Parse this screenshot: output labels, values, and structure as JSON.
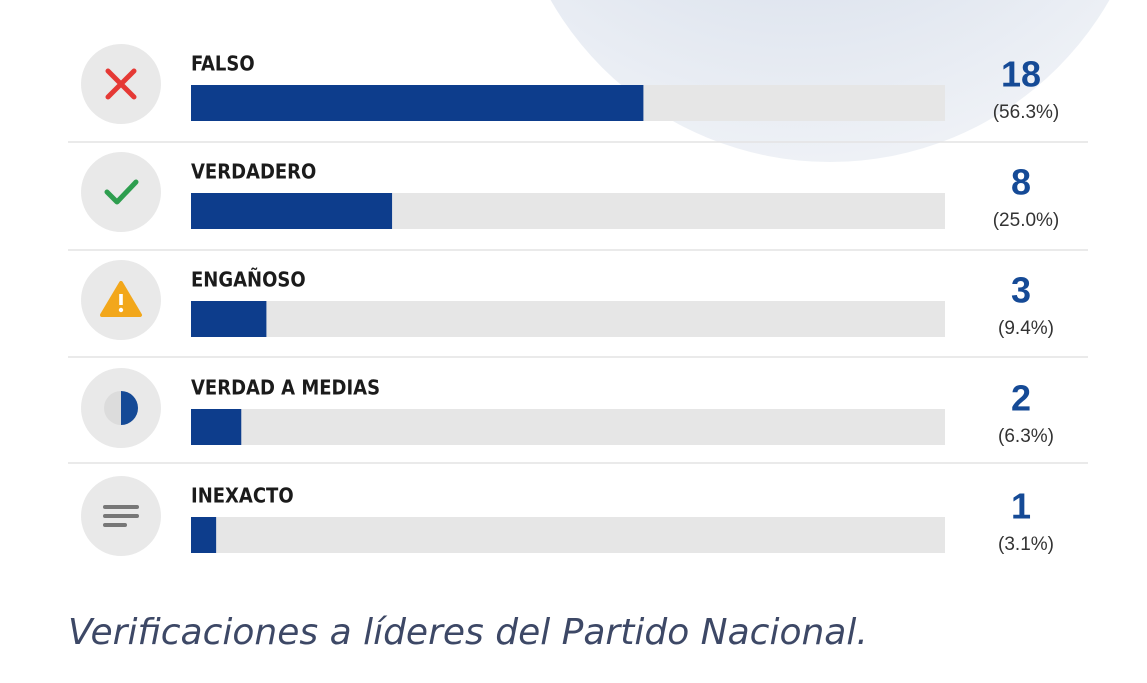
{
  "chart_data": {
    "type": "bar",
    "orientation": "horizontal",
    "categories": [
      "FALSO",
      "VERDADERO",
      "ENGAÑOSO",
      "VERDAD A MEDIAS",
      "INEXACTO"
    ],
    "values": [
      18,
      8,
      3,
      2,
      1
    ],
    "percent_labels": [
      "(56.3%)",
      "(25.0%)",
      "(9.4%)",
      "(6.3%)",
      "(3.1%)"
    ],
    "color": "#0d3d8c",
    "track_color": "#e6e6e6",
    "xlim": [
      0,
      30
    ],
    "caption": "Verificaciones a líderes del Partido Nacional."
  }
}
